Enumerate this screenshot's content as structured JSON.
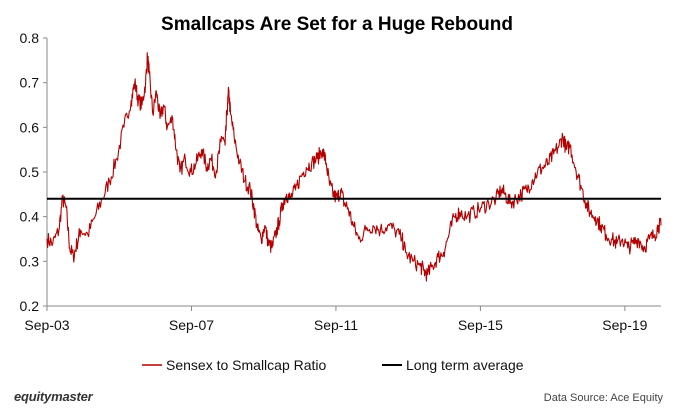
{
  "footer": {
    "brand": "equitymaster",
    "source": "Data Source: Ace Equity"
  },
  "chart_data": {
    "type": "line",
    "title": "Smallcaps Are Set for a Huge Rebound",
    "xlabel": "",
    "ylabel": "",
    "ylim": [
      0.2,
      0.8
    ],
    "yticks": [
      "0.2",
      "0.3",
      "0.4",
      "0.5",
      "0.6",
      "0.7",
      "0.8"
    ],
    "xticks": [
      {
        "label": "Sep-03",
        "x": 2003.67
      },
      {
        "label": "Sep-07",
        "x": 2007.67
      },
      {
        "label": "Sep-11",
        "x": 2011.67
      },
      {
        "label": "Sep-15",
        "x": 2015.67
      },
      {
        "label": "Sep-19",
        "x": 2019.67
      }
    ],
    "xlim": [
      2003.67,
      2020.67
    ],
    "grid": false,
    "legend": "bottom",
    "series": [
      {
        "name": "Sensex to Smallcap Ratio",
        "color": "#b40000",
        "points": [
          [
            2003.67,
            0.35
          ],
          [
            2003.83,
            0.34
          ],
          [
            2004.0,
            0.37
          ],
          [
            2004.1,
            0.44
          ],
          [
            2004.2,
            0.42
          ],
          [
            2004.3,
            0.33
          ],
          [
            2004.4,
            0.31
          ],
          [
            2004.5,
            0.34
          ],
          [
            2004.6,
            0.37
          ],
          [
            2004.8,
            0.36
          ],
          [
            2005.0,
            0.4
          ],
          [
            2005.2,
            0.44
          ],
          [
            2005.4,
            0.48
          ],
          [
            2005.6,
            0.53
          ],
          [
            2005.8,
            0.6
          ],
          [
            2006.0,
            0.66
          ],
          [
            2006.1,
            0.7
          ],
          [
            2006.2,
            0.66
          ],
          [
            2006.3,
            0.65
          ],
          [
            2006.4,
            0.7
          ],
          [
            2006.45,
            0.76
          ],
          [
            2006.5,
            0.72
          ],
          [
            2006.6,
            0.63
          ],
          [
            2006.7,
            0.68
          ],
          [
            2006.8,
            0.62
          ],
          [
            2006.9,
            0.65
          ],
          [
            2007.0,
            0.6
          ],
          [
            2007.15,
            0.62
          ],
          [
            2007.25,
            0.55
          ],
          [
            2007.35,
            0.5
          ],
          [
            2007.5,
            0.53
          ],
          [
            2007.65,
            0.5
          ],
          [
            2007.8,
            0.52
          ],
          [
            2007.95,
            0.55
          ],
          [
            2008.1,
            0.51
          ],
          [
            2008.2,
            0.53
          ],
          [
            2008.35,
            0.5
          ],
          [
            2008.45,
            0.55
          ],
          [
            2008.5,
            0.58
          ],
          [
            2008.6,
            0.56
          ],
          [
            2008.65,
            0.63
          ],
          [
            2008.7,
            0.68
          ],
          [
            2008.75,
            0.63
          ],
          [
            2008.85,
            0.58
          ],
          [
            2009.0,
            0.52
          ],
          [
            2009.15,
            0.48
          ],
          [
            2009.3,
            0.46
          ],
          [
            2009.4,
            0.42
          ],
          [
            2009.5,
            0.37
          ],
          [
            2009.6,
            0.35
          ],
          [
            2009.7,
            0.38
          ],
          [
            2009.8,
            0.34
          ],
          [
            2009.9,
            0.33
          ],
          [
            2010.0,
            0.36
          ],
          [
            2010.1,
            0.39
          ],
          [
            2010.2,
            0.43
          ],
          [
            2010.3,
            0.45
          ],
          [
            2010.4,
            0.44
          ],
          [
            2010.55,
            0.46
          ],
          [
            2010.7,
            0.49
          ],
          [
            2010.85,
            0.51
          ],
          [
            2011.0,
            0.52
          ],
          [
            2011.15,
            0.53
          ],
          [
            2011.3,
            0.55
          ],
          [
            2011.4,
            0.52
          ],
          [
            2011.5,
            0.47
          ],
          [
            2011.6,
            0.45
          ],
          [
            2011.7,
            0.44
          ],
          [
            2011.8,
            0.46
          ],
          [
            2011.9,
            0.43
          ],
          [
            2012.0,
            0.42
          ],
          [
            2012.15,
            0.38
          ],
          [
            2012.3,
            0.35
          ],
          [
            2012.5,
            0.37
          ],
          [
            2012.7,
            0.38
          ],
          [
            2012.9,
            0.37
          ],
          [
            2013.1,
            0.38
          ],
          [
            2013.3,
            0.37
          ],
          [
            2013.5,
            0.35
          ],
          [
            2013.6,
            0.32
          ],
          [
            2013.8,
            0.3
          ],
          [
            2014.0,
            0.29
          ],
          [
            2014.1,
            0.28
          ],
          [
            2014.2,
            0.27
          ],
          [
            2014.35,
            0.29
          ],
          [
            2014.5,
            0.31
          ],
          [
            2014.65,
            0.32
          ],
          [
            2014.8,
            0.36
          ],
          [
            2014.95,
            0.4
          ],
          [
            2015.1,
            0.41
          ],
          [
            2015.3,
            0.4
          ],
          [
            2015.5,
            0.41
          ],
          [
            2015.7,
            0.42
          ],
          [
            2015.9,
            0.43
          ],
          [
            2016.1,
            0.44
          ],
          [
            2016.25,
            0.46
          ],
          [
            2016.35,
            0.45
          ],
          [
            2016.5,
            0.43
          ],
          [
            2016.65,
            0.44
          ],
          [
            2016.8,
            0.45
          ],
          [
            2016.95,
            0.46
          ],
          [
            2017.1,
            0.48
          ],
          [
            2017.25,
            0.5
          ],
          [
            2017.4,
            0.51
          ],
          [
            2017.55,
            0.52
          ],
          [
            2017.7,
            0.54
          ],
          [
            2017.85,
            0.56
          ],
          [
            2017.95,
            0.58
          ],
          [
            2018.05,
            0.55
          ],
          [
            2018.15,
            0.56
          ],
          [
            2018.3,
            0.51
          ],
          [
            2018.45,
            0.47
          ],
          [
            2018.6,
            0.43
          ],
          [
            2018.7,
            0.41
          ],
          [
            2018.85,
            0.4
          ],
          [
            2019.0,
            0.38
          ],
          [
            2019.15,
            0.36
          ],
          [
            2019.3,
            0.35
          ],
          [
            2019.45,
            0.34
          ],
          [
            2019.6,
            0.35
          ],
          [
            2019.75,
            0.33
          ],
          [
            2019.9,
            0.34
          ],
          [
            2020.05,
            0.35
          ],
          [
            2020.2,
            0.33
          ],
          [
            2020.35,
            0.35
          ],
          [
            2020.5,
            0.36
          ],
          [
            2020.6,
            0.38
          ],
          [
            2020.67,
            0.38
          ]
        ]
      },
      {
        "name": "Long term average",
        "color": "#000000",
        "value": 0.44
      }
    ]
  }
}
